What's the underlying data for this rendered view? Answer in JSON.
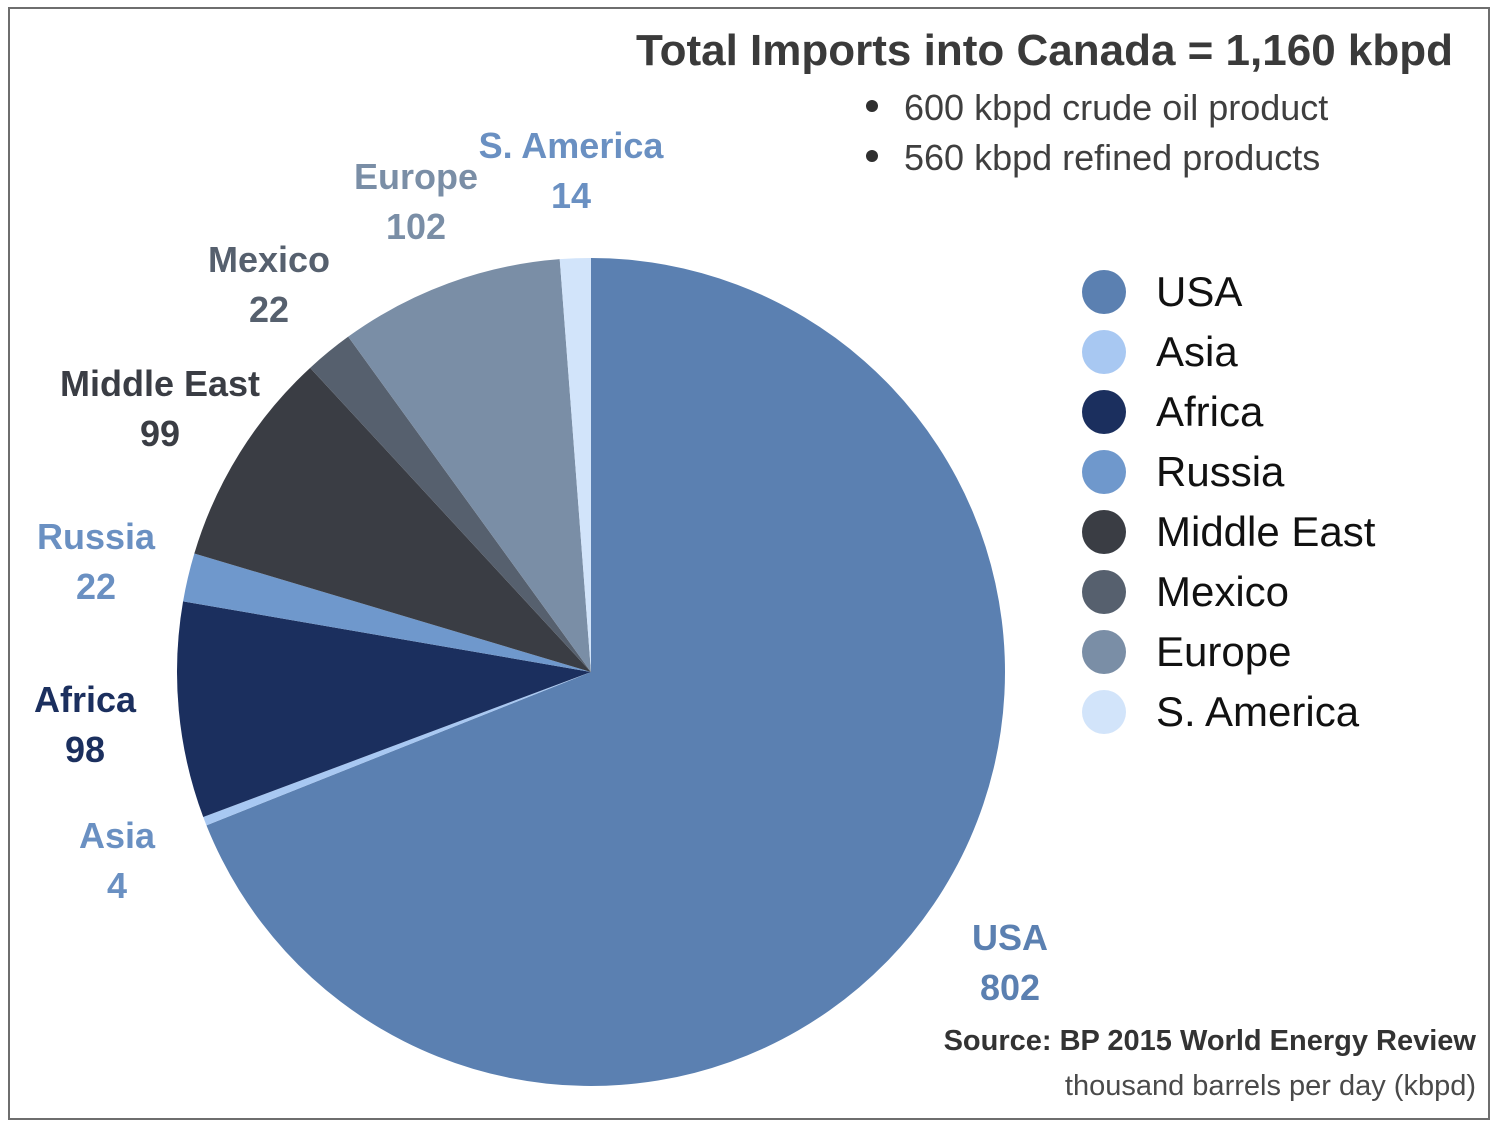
{
  "title": "Total Imports into Canada = 1,160 kbpd",
  "bullets": [
    "600 kbpd crude oil product",
    "560 kbpd refined products"
  ],
  "source": "Source: BP 2015 World Energy Review",
  "unit_note": "thousand barrels per day (kbpd)",
  "chart_data": {
    "type": "pie",
    "title": "Total Imports into Canada = 1,160 kbpd",
    "unit": "kbpd",
    "legend_position": "right",
    "slices": [
      {
        "label": "USA",
        "value": 802,
        "color": "#5b80b1",
        "label_color": "#5b80b1"
      },
      {
        "label": "Asia",
        "value": 4,
        "color": "#a8c8f2",
        "label_color": "#6a90c2"
      },
      {
        "label": "Africa",
        "value": 98,
        "color": "#1b2f5e",
        "label_color": "#1b2f5e"
      },
      {
        "label": "Russia",
        "value": 22,
        "color": "#6f98cc",
        "label_color": "#6a90c2"
      },
      {
        "label": "Middle East",
        "value": 99,
        "color": "#3a3d44",
        "label_color": "#3a3d44"
      },
      {
        "label": "Mexico",
        "value": 22,
        "color": "#56606e",
        "label_color": "#56606e"
      },
      {
        "label": "Europe",
        "value": 102,
        "color": "#7a8ea6",
        "label_color": "#7a8ea6"
      },
      {
        "label": "S. America",
        "value": 14,
        "color": "#d2e4fa",
        "label_color": "#6a90c2"
      }
    ]
  }
}
